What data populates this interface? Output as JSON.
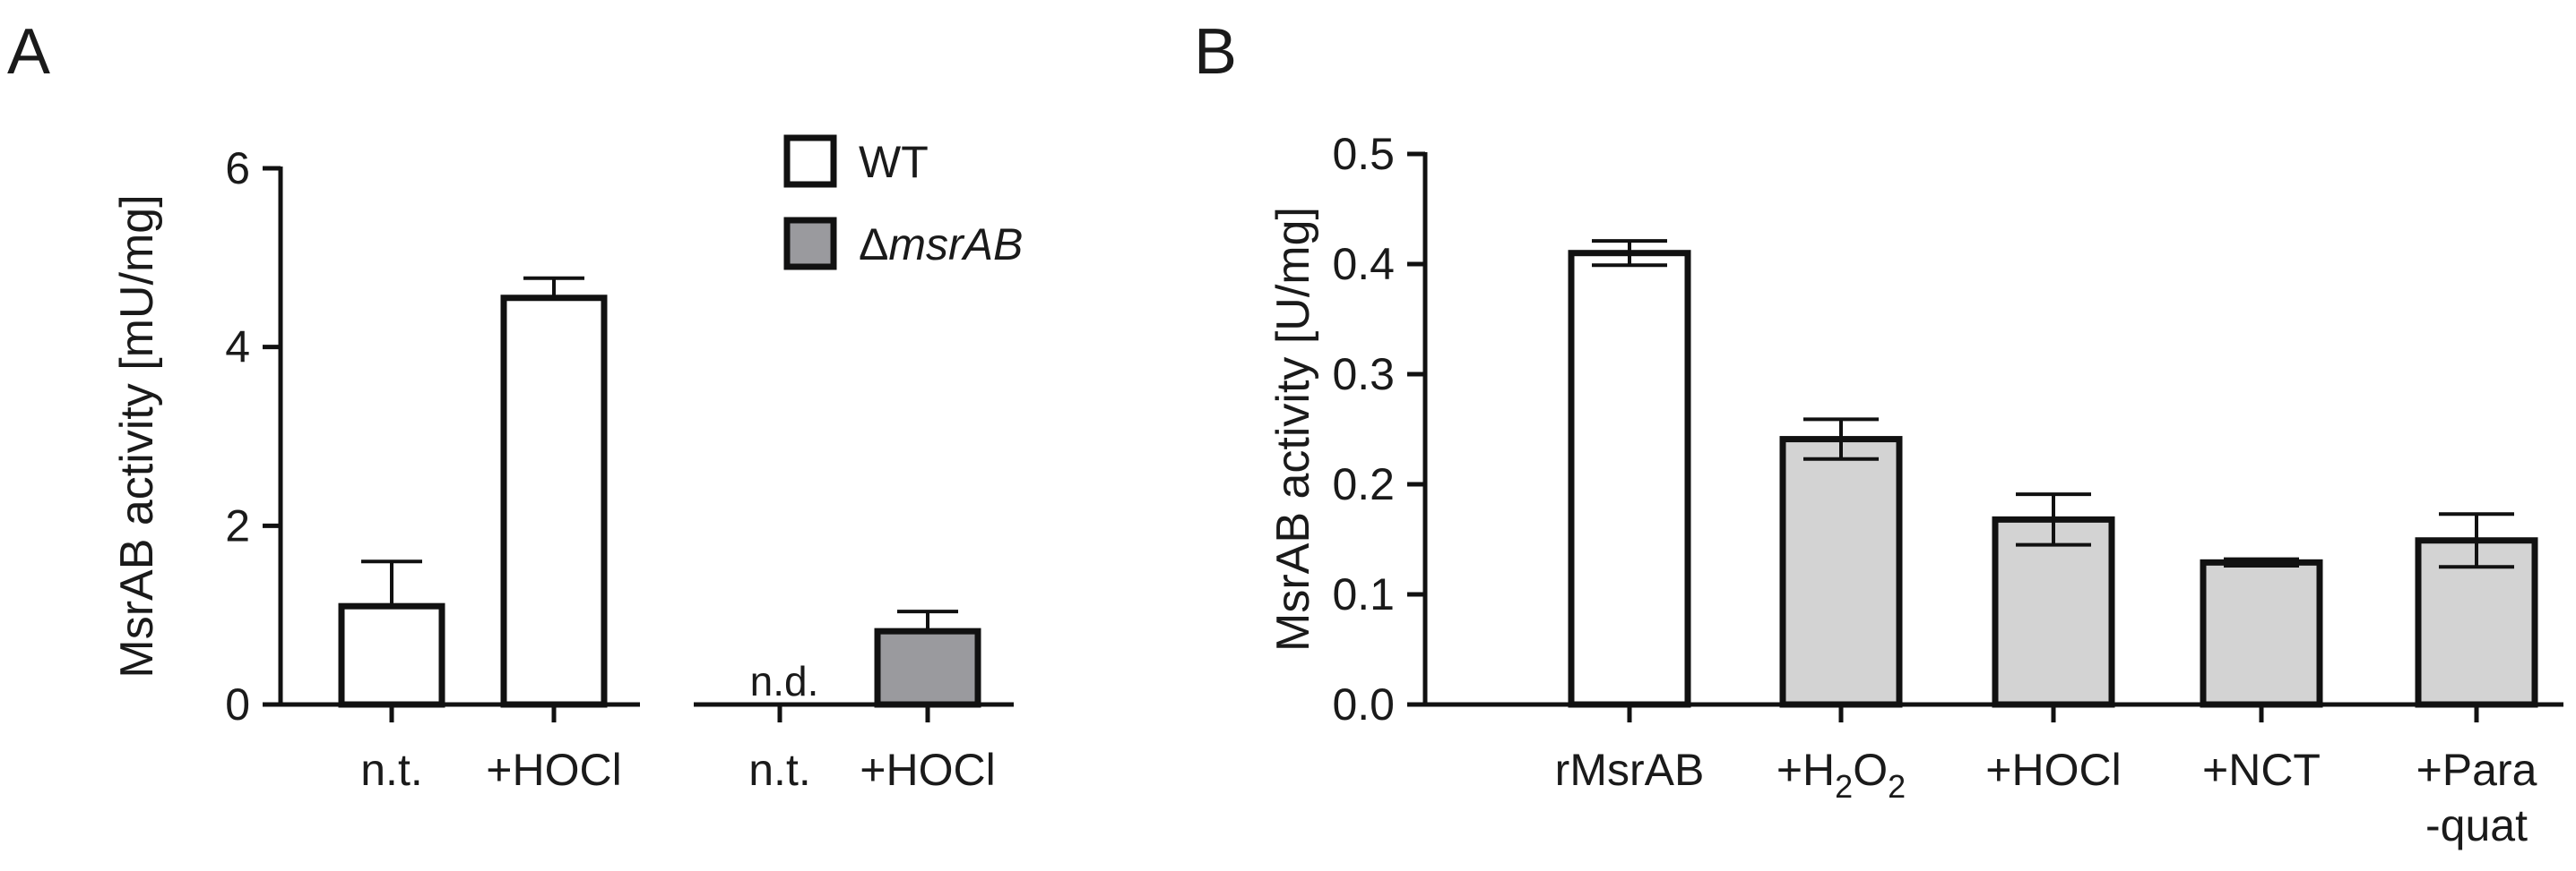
{
  "figure": {
    "background": "#ffffff",
    "ink": "#111111"
  },
  "chart_data": [
    {
      "panel": "A",
      "type": "bar",
      "ylabel": "MsrAB activity [mU/mg]",
      "ylim": [
        0,
        6
      ],
      "yticks": [
        "0",
        "2",
        "4",
        "6"
      ],
      "grid": false,
      "legend_position": "top-right",
      "series": [
        {
          "name": "WT",
          "fill": "#ffffff"
        },
        {
          "name": "ΔmsrAB",
          "name_prefix": "Δ",
          "name_italic": "msrAB",
          "fill": "#9a9a9e"
        }
      ],
      "groups": [
        {
          "series": "WT",
          "bars": [
            {
              "label": "n.t.",
              "value": 1.1,
              "error": 0.5
            },
            {
              "label": "+HOCl",
              "value": 4.55,
              "error": 0.22
            }
          ]
        },
        {
          "series": "ΔmsrAB",
          "bars": [
            {
              "label": "n.t.",
              "value": null,
              "error": null,
              "annotation": "n.d."
            },
            {
              "label": "+HOCl",
              "value": 0.82,
              "error": 0.22
            }
          ]
        }
      ]
    },
    {
      "panel": "B",
      "type": "bar",
      "ylabel": "MsrAB activity [U/mg]",
      "ylim": [
        0,
        0.5
      ],
      "yticks": [
        "0.0",
        "0.1",
        "0.2",
        "0.3",
        "0.4",
        "0.5"
      ],
      "grid": false,
      "categories": [
        "rMsrAB",
        "+H2O2",
        "+HOCl",
        "+NCT",
        "+Para-quat"
      ],
      "category_labels": [
        {
          "lines": [
            "rMsrAB"
          ]
        },
        {
          "lines": [
            "+H2O2"
          ],
          "prefix": "+H",
          "sub1": "2",
          "mid": "O",
          "sub2": "2"
        },
        {
          "lines": [
            "+HOCl"
          ]
        },
        {
          "lines": [
            "+NCT"
          ]
        },
        {
          "lines": [
            "+Para",
            "-quat"
          ]
        }
      ],
      "values": [
        0.41,
        0.241,
        0.168,
        0.129,
        0.149
      ],
      "errors": [
        0.011,
        0.018,
        0.023,
        0.003,
        0.024
      ],
      "fills": [
        "#ffffff",
        "#d3d3d3",
        "#d3d3d3",
        "#d3d3d3",
        "#d3d3d3"
      ]
    }
  ]
}
